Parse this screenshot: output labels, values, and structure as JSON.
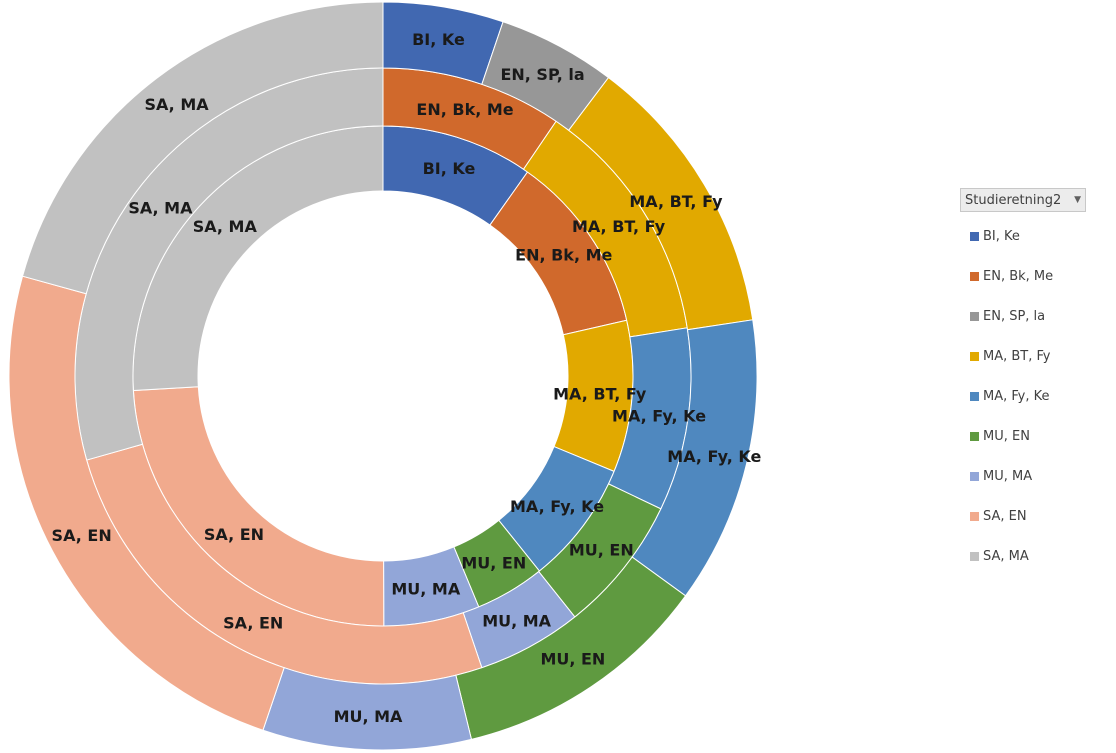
{
  "legend": {
    "title": "Studieretning2",
    "filter_icon": "dropdown-arrow-icon",
    "items": [
      {
        "label": "BI, Ke",
        "color": "#4168b1"
      },
      {
        "label": "EN, Bk, Me",
        "color": "#d0692c"
      },
      {
        "label": "EN, SP, la",
        "color": "#979797"
      },
      {
        "label": "MA, BT, Fy",
        "color": "#e1a900"
      },
      {
        "label": "MA, Fy, Ke",
        "color": "#4f88bf"
      },
      {
        "label": "MU, EN",
        "color": "#5f9a40"
      },
      {
        "label": "MU, MA",
        "color": "#92a6d8"
      },
      {
        "label": "SA, EN",
        "color": "#f1aa8d"
      },
      {
        "label": "SA, MA",
        "color": "#c1c1c1"
      }
    ]
  },
  "chart_data": {
    "type": "doughnut",
    "categories": [
      "BI, Ke",
      "EN, Bk, Me",
      "EN, SP, la",
      "MA, BT, Fy",
      "MA, Fy, Ke",
      "MU, EN",
      "MU, MA",
      "SA, EN",
      "SA, MA"
    ],
    "rings": [
      {
        "level": "inner",
        "values": [
          0.098,
          0.116,
          0,
          0.098,
          0.08,
          0.045,
          0.062,
          0.241,
          0.259
        ]
      },
      {
        "level": "middle",
        "values": [
          0,
          0.095,
          0,
          0.13,
          0.096,
          0.072,
          0.055,
          0.258,
          0.294
        ]
      },
      {
        "level": "outer",
        "values": [
          0.052,
          0,
          0.051,
          0.123,
          0.124,
          0.112,
          0.09,
          0.241,
          0.207
        ]
      }
    ],
    "colors": [
      "#4168b1",
      "#d0692c",
      "#979797",
      "#e1a900",
      "#4f88bf",
      "#5f9a40",
      "#92a6d8",
      "#f1aa8d",
      "#c1c1c1"
    ],
    "legend_position": "right"
  }
}
